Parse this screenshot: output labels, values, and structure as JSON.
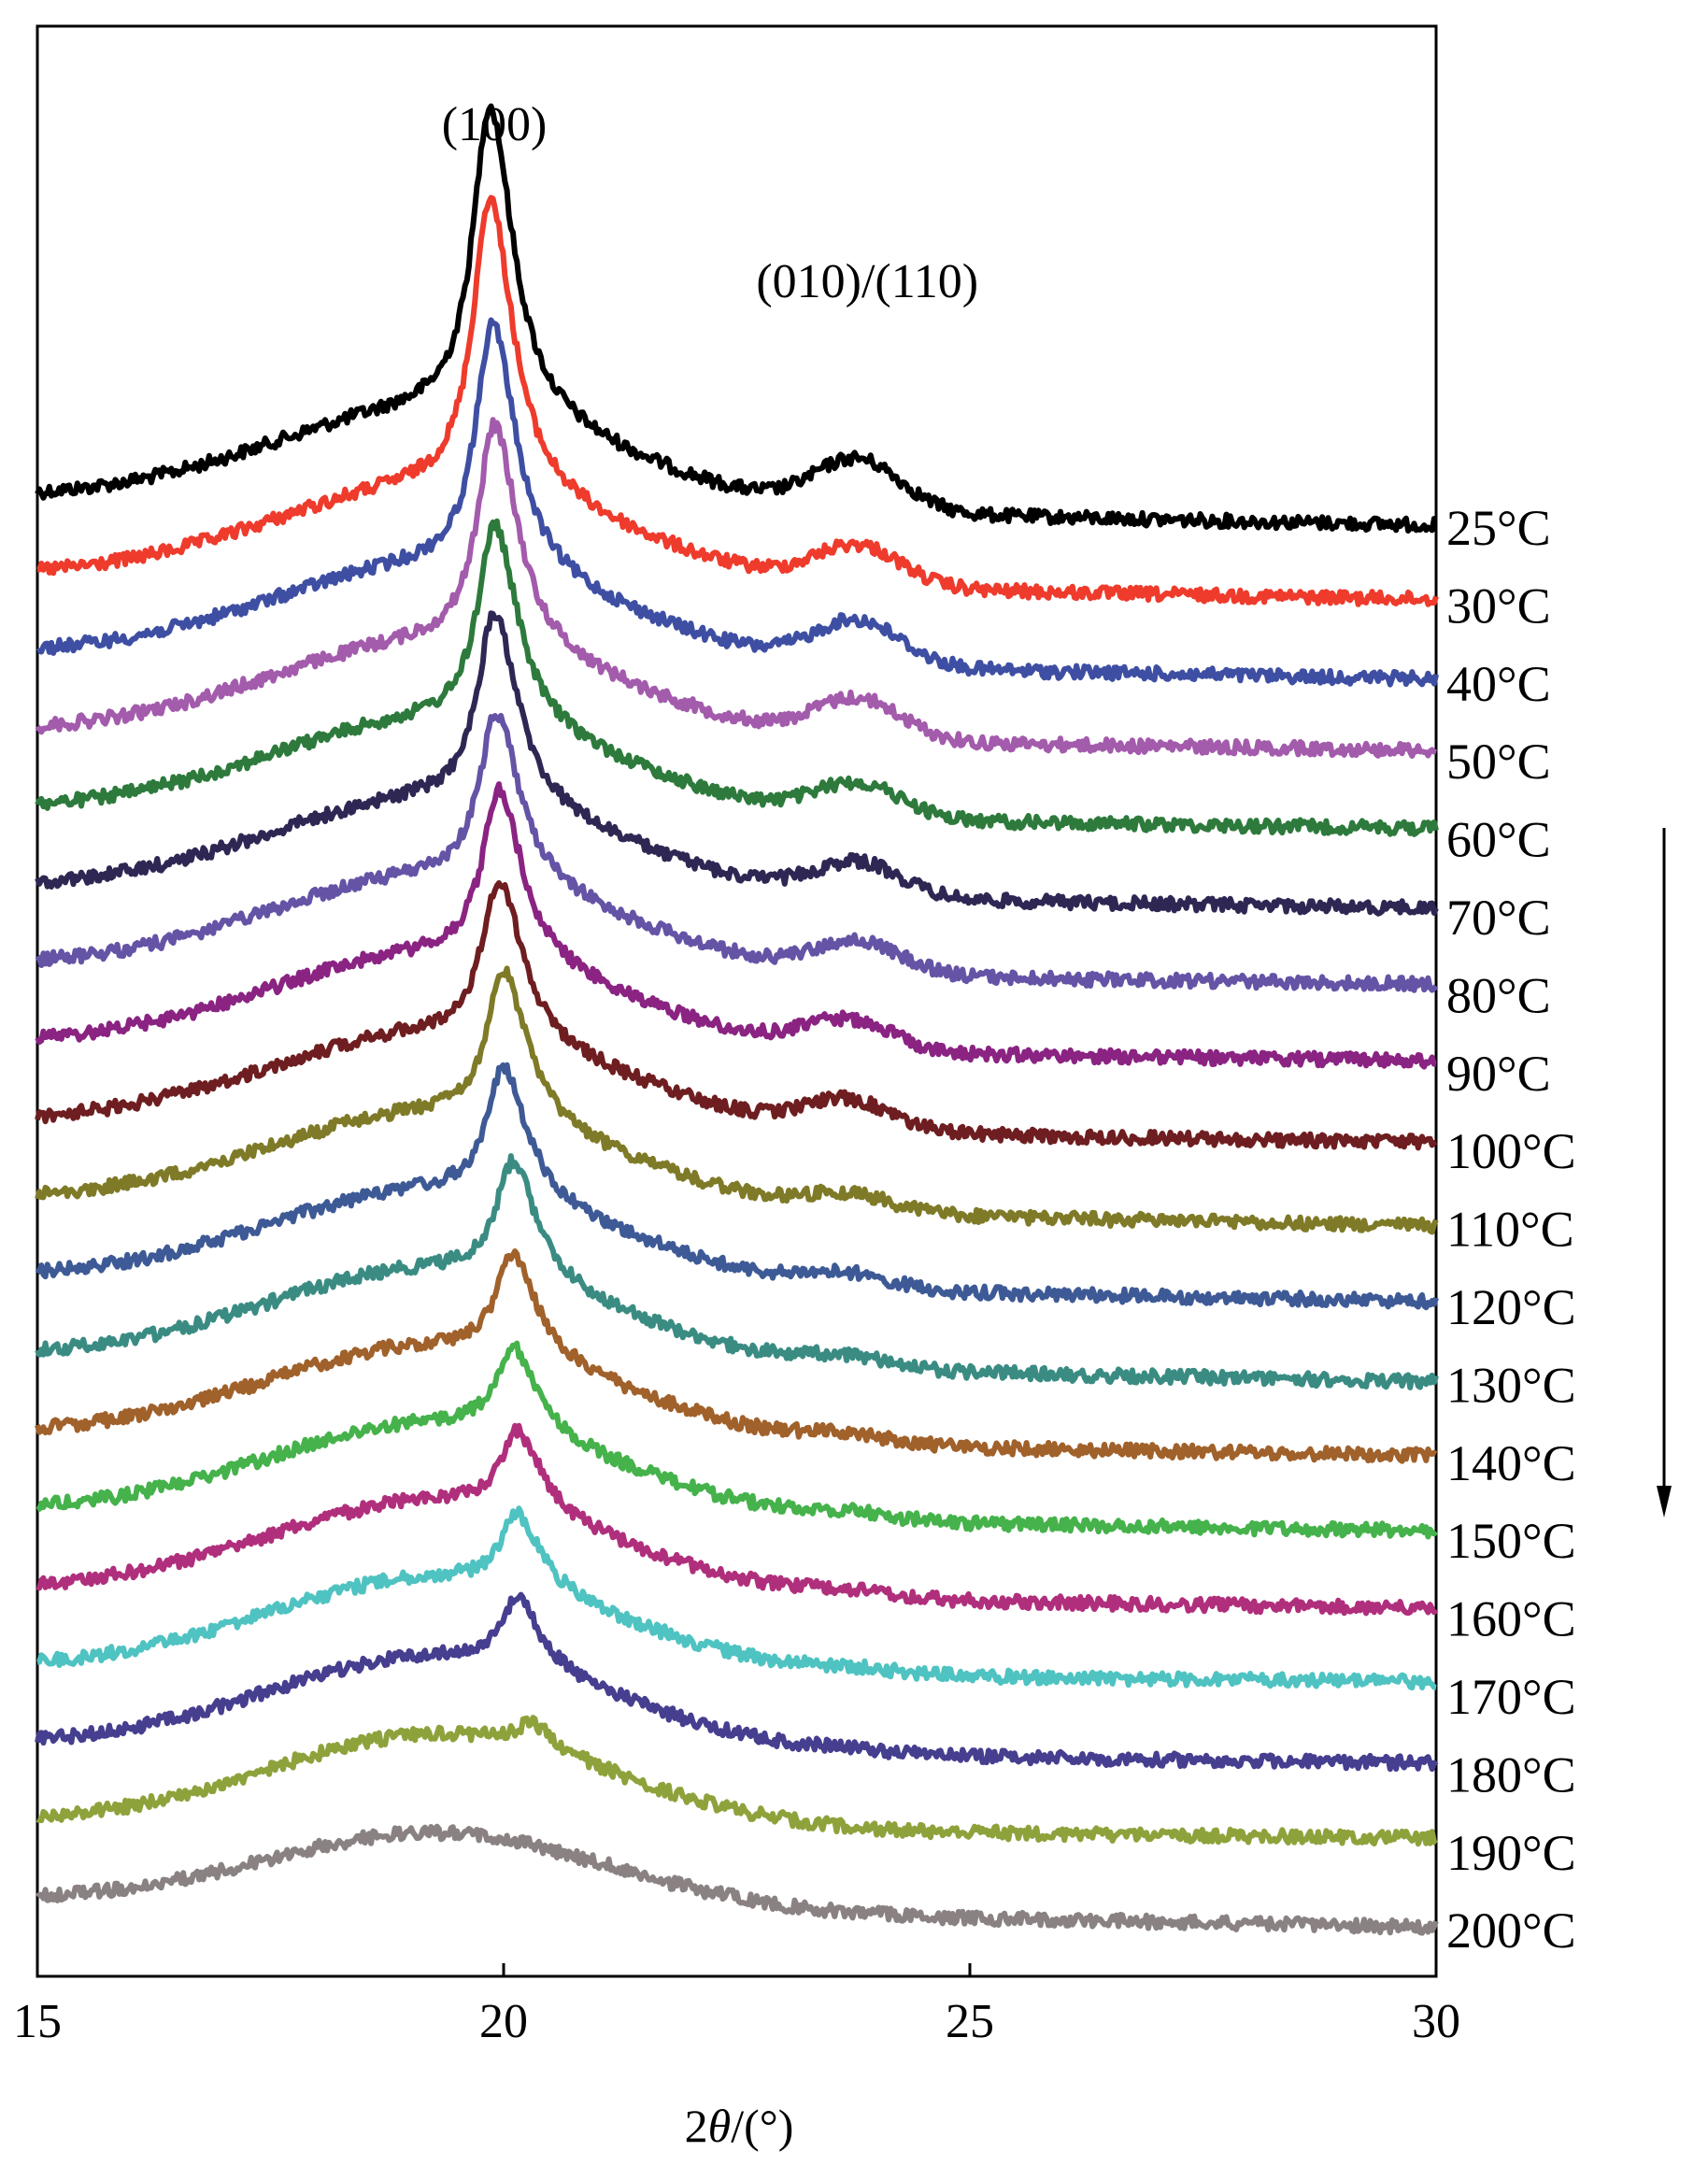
{
  "chart_data": {
    "type": "line",
    "xlabel_prefix": "2",
    "xlabel_theta": "θ",
    "xlabel_suffix": "/(°)",
    "xlim": [
      15,
      30
    ],
    "x_ticks": [
      15,
      20,
      25,
      30
    ],
    "y_ticks_shown": false,
    "grid": false,
    "annotations": [
      {
        "text": "(100)",
        "x": 19.9
      },
      {
        "text": "(010)/(110)",
        "x": 23.9
      }
    ],
    "offset_direction": "downward arrow on right side",
    "series": [
      {
        "name": "25°C",
        "color": "#000000",
        "peak100": {
          "x": 19.85,
          "height": 1.0
        },
        "peak010": {
          "x": 23.8,
          "height": 0.38
        },
        "halo": 0.55
      },
      {
        "name": "30°C",
        "color": "#ee3b2c",
        "peak100": {
          "x": 19.85,
          "height": 0.95
        },
        "peak010": {
          "x": 23.8,
          "height": 0.3
        },
        "halo": 0.55
      },
      {
        "name": "40°C",
        "color": "#3e4fa3",
        "peak100": {
          "x": 19.88,
          "height": 0.8
        },
        "peak010": {
          "x": 23.8,
          "height": 0.33
        },
        "halo": 0.55
      },
      {
        "name": "50°C",
        "color": "#a35bac",
        "peak100": {
          "x": 19.9,
          "height": 0.72
        },
        "peak010": {
          "x": 23.8,
          "height": 0.3
        },
        "halo": 0.55
      },
      {
        "name": "60°C",
        "color": "#2d7a3c",
        "peak100": {
          "x": 19.9,
          "height": 0.65
        },
        "peak010": {
          "x": 23.8,
          "height": 0.25
        },
        "halo": 0.55
      },
      {
        "name": "70°C",
        "color": "#2f2753",
        "peak100": {
          "x": 19.9,
          "height": 0.62
        },
        "peak010": {
          "x": 23.8,
          "height": 0.25
        },
        "halo": 0.55
      },
      {
        "name": "80°C",
        "color": "#6553a6",
        "peak100": {
          "x": 19.92,
          "height": 0.55
        },
        "peak010": {
          "x": 23.8,
          "height": 0.23
        },
        "halo": 0.55
      },
      {
        "name": "90°C",
        "color": "#8a2382",
        "peak100": {
          "x": 19.95,
          "height": 0.55
        },
        "peak010": {
          "x": 23.7,
          "height": 0.22
        },
        "halo": 0.55
      },
      {
        "name": "100°C",
        "color": "#6e1e20",
        "peak100": {
          "x": 19.95,
          "height": 0.52
        },
        "peak010": {
          "x": 23.7,
          "height": 0.22
        },
        "halo": 0.55
      },
      {
        "name": "110°C",
        "color": "#7f7a27",
        "peak100": {
          "x": 20.0,
          "height": 0.48
        },
        "peak010": {
          "x": 23.7,
          "height": 0.12
        },
        "halo": 0.55
      },
      {
        "name": "120°C",
        "color": "#3e5a96",
        "peak100": {
          "x": 20.0,
          "height": 0.42
        },
        "peak010": {
          "x": 23.7,
          "height": 0.1
        },
        "halo": 0.55
      },
      {
        "name": "130°C",
        "color": "#3a8c83",
        "peak100": {
          "x": 20.1,
          "height": 0.38
        },
        "peak010": {
          "x": 23.7,
          "height": 0.08
        },
        "halo": 0.55
      },
      {
        "name": "140°C",
        "color": "#a0612b",
        "peak100": {
          "x": 20.1,
          "height": 0.33
        },
        "peak010": {
          "x": 23.7,
          "height": 0.06
        },
        "halo": 0.55
      },
      {
        "name": "150°C",
        "color": "#45b24b",
        "peak100": {
          "x": 20.1,
          "height": 0.28
        },
        "peak010": {
          "x": 23.7,
          "height": 0.05
        },
        "halo": 0.55
      },
      {
        "name": "160°C",
        "color": "#b02f7c",
        "peak100": {
          "x": 20.15,
          "height": 0.26
        },
        "peak010": {
          "x": 23.7,
          "height": 0.04
        },
        "halo": 0.55
      },
      {
        "name": "170°C",
        "color": "#4fc3c1",
        "peak100": {
          "x": 20.15,
          "height": 0.24
        },
        "peak010": {
          "x": 23.7,
          "height": 0.03
        },
        "halo": 0.55
      },
      {
        "name": "180°C",
        "color": "#463e8f",
        "peak100": {
          "x": 20.15,
          "height": 0.22
        },
        "peak010": {
          "x": 23.7,
          "height": 0.02
        },
        "halo": 0.55
      },
      {
        "name": "190°C",
        "color": "#8ea23c",
        "peak100": {
          "x": 20.3,
          "height": 0.08
        },
        "peak010": {
          "x": 23.7,
          "height": 0.0
        },
        "halo": 0.55
      },
      {
        "name": "200°C",
        "color": "#8a8282",
        "peak100": {
          "x": 20.3,
          "height": 0.0
        },
        "peak010": {
          "x": 23.7,
          "height": 0.0
        },
        "halo": 0.45
      }
    ]
  }
}
